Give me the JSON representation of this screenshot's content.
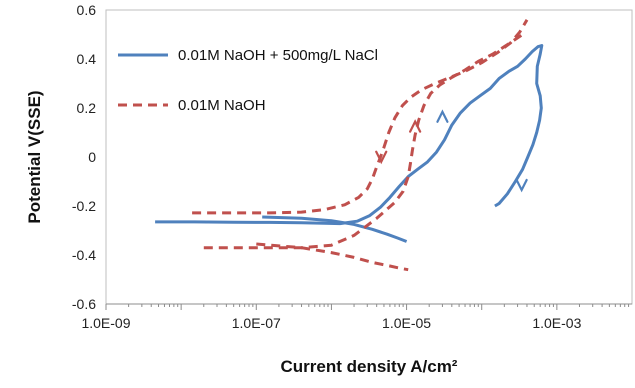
{
  "chart_data": {
    "type": "line",
    "xscale": "log",
    "xlabel": "Current density A/cm²",
    "ylabel": "Potential V(SSE)",
    "xlim": [
      1e-09,
      0.01
    ],
    "ylim": [
      -0.6,
      0.6
    ],
    "xticks": [
      {
        "value": 1e-09,
        "label": "1.0E-09"
      },
      {
        "value": 1e-07,
        "label": "1.0E-07"
      },
      {
        "value": 1e-05,
        "label": "1.0E-05"
      },
      {
        "value": 0.001,
        "label": "1.0E-03"
      }
    ],
    "yticks": [
      {
        "value": -0.6,
        "label": "-0.6"
      },
      {
        "value": -0.4,
        "label": "-0.4"
      },
      {
        "value": -0.2,
        "label": "-0.2"
      },
      {
        "value": 0,
        "label": "0"
      },
      {
        "value": 0.2,
        "label": "0.2"
      },
      {
        "value": 0.4,
        "label": "0.4"
      },
      {
        "value": 0.6,
        "label": "0.6"
      }
    ],
    "grid": false,
    "legend_position": "top-left",
    "series": [
      {
        "name": "0.01M NaOH + 500mg/L NaCl",
        "color": "#4f81bd",
        "style": "solid",
        "points": [
          [
            4.5e-09,
            -0.265
          ],
          [
            1.5e-08,
            -0.265
          ],
          [
            5e-08,
            -0.266
          ],
          [
            1.5e-07,
            -0.267
          ],
          [
            4e-07,
            -0.268
          ],
          [
            8e-07,
            -0.27
          ],
          [
            1.3e-06,
            -0.272
          ],
          [
            2.2e-06,
            -0.262
          ],
          [
            3.2e-06,
            -0.24
          ],
          [
            4.5e-06,
            -0.205
          ],
          [
            6e-06,
            -0.165
          ],
          [
            8e-06,
            -0.12
          ],
          [
            1.05e-05,
            -0.08
          ],
          [
            1.4e-05,
            -0.05
          ],
          [
            1.9e-05,
            -0.02
          ],
          [
            2.5e-05,
            0.02
          ],
          [
            3.2e-05,
            0.07
          ],
          [
            4e-05,
            0.13
          ],
          [
            5.2e-05,
            0.18
          ],
          [
            7e-05,
            0.22
          ],
          [
            9.5e-05,
            0.25
          ],
          [
            0.00013,
            0.28
          ],
          [
            0.00017,
            0.32
          ],
          [
            0.00023,
            0.35
          ],
          [
            0.0003,
            0.37
          ],
          [
            0.00038,
            0.4
          ],
          [
            0.00047,
            0.43
          ],
          [
            0.00056,
            0.45
          ],
          [
            0.00063,
            0.455
          ],
          [
            0.0006,
            0.42
          ],
          [
            0.00055,
            0.37
          ],
          [
            0.00054,
            0.3
          ],
          [
            0.0006,
            0.25
          ],
          [
            0.00062,
            0.2
          ],
          [
            0.00059,
            0.15
          ],
          [
            0.00054,
            0.1
          ],
          [
            0.00048,
            0.05
          ],
          [
            0.00041,
            0.0
          ],
          [
            0.00035,
            -0.05
          ],
          [
            0.00028,
            -0.1
          ],
          [
            0.00022,
            -0.15
          ],
          [
            0.00017,
            -0.19
          ],
          [
            0.00015,
            -0.2
          ]
        ]
      },
      {
        "name": "",
        "color": "#4f81bd",
        "style": "solid",
        "points": [
          [
            1.2e-07,
            -0.245
          ],
          [
            4e-07,
            -0.25
          ],
          [
            1e-06,
            -0.26
          ],
          [
            2e-06,
            -0.275
          ],
          [
            3.5e-06,
            -0.295
          ],
          [
            5.5e-06,
            -0.315
          ],
          [
            7.5e-06,
            -0.33
          ],
          [
            1e-05,
            -0.345
          ]
        ]
      },
      {
        "name": "0.01M NaOH",
        "color": "#c0504d",
        "style": "dashed",
        "points": [
          [
            1.4e-08,
            -0.228
          ],
          [
            5e-08,
            -0.228
          ],
          [
            1.5e-07,
            -0.228
          ],
          [
            4e-07,
            -0.225
          ],
          [
            8e-07,
            -0.215
          ],
          [
            1.5e-06,
            -0.195
          ],
          [
            2.3e-06,
            -0.165
          ],
          [
            3e-06,
            -0.13
          ],
          [
            3.5e-06,
            -0.09
          ],
          [
            4e-06,
            -0.04
          ],
          [
            4.5e-06,
            0.0
          ],
          [
            5e-06,
            0.04
          ],
          [
            5.8e-06,
            0.1
          ],
          [
            7e-06,
            0.16
          ],
          [
            8.8e-06,
            0.21
          ],
          [
            1.15e-05,
            0.245
          ],
          [
            1.6e-05,
            0.275
          ],
          [
            2.4e-05,
            0.3
          ],
          [
            3.8e-05,
            0.325
          ],
          [
            6e-05,
            0.35
          ],
          [
            0.0001,
            0.385
          ],
          [
            0.00016,
            0.425
          ],
          [
            0.00024,
            0.465
          ],
          [
            0.00032,
            0.51
          ],
          [
            0.0004,
            0.56
          ]
        ]
      },
      {
        "name": "",
        "color": "#c0504d",
        "style": "dashed",
        "points": [
          [
            2e-08,
            -0.37
          ],
          [
            1e-07,
            -0.37
          ],
          [
            4e-07,
            -0.37
          ],
          [
            1e-06,
            -0.36
          ],
          [
            2e-06,
            -0.32
          ],
          [
            4e-06,
            -0.25
          ],
          [
            7e-06,
            -0.185
          ],
          [
            9e-06,
            -0.14
          ],
          [
            1.05e-05,
            -0.08
          ],
          [
            1.12e-05,
            -0.03
          ],
          [
            1.2e-05,
            0.03
          ],
          [
            1.3e-05,
            0.09
          ],
          [
            1.45e-05,
            0.15
          ],
          [
            1.7e-05,
            0.21
          ],
          [
            2.1e-05,
            0.26
          ],
          [
            2.8e-05,
            0.295
          ],
          [
            4e-05,
            0.325
          ],
          [
            6e-05,
            0.355
          ],
          [
            9e-05,
            0.39
          ],
          [
            0.00014,
            0.42
          ],
          [
            0.0002,
            0.45
          ],
          [
            0.00028,
            0.48
          ],
          [
            0.00035,
            0.5
          ]
        ]
      },
      {
        "name": "",
        "color": "#c0504d",
        "style": "dashed",
        "points": [
          [
            1e-07,
            -0.355
          ],
          [
            4e-07,
            -0.37
          ],
          [
            1e-06,
            -0.39
          ],
          [
            2e-06,
            -0.41
          ],
          [
            3.5e-06,
            -0.43
          ],
          [
            6e-06,
            -0.445
          ],
          [
            8.5e-06,
            -0.455
          ],
          [
            1.05e-05,
            -0.46
          ]
        ]
      }
    ],
    "arrows": [
      {
        "x": 3e-05,
        "y": 0.16,
        "direction": "up",
        "color": "#4f81bd"
      },
      {
        "x": 0.00034,
        "y": -0.11,
        "direction": "down",
        "color": "#4f81bd"
      },
      {
        "x": 4.6e-06,
        "y": 0.005,
        "direction": "down",
        "color": "#c0504d"
      },
      {
        "x": 1.3e-05,
        "y": 0.12,
        "direction": "up",
        "color": "#c0504d"
      }
    ]
  }
}
